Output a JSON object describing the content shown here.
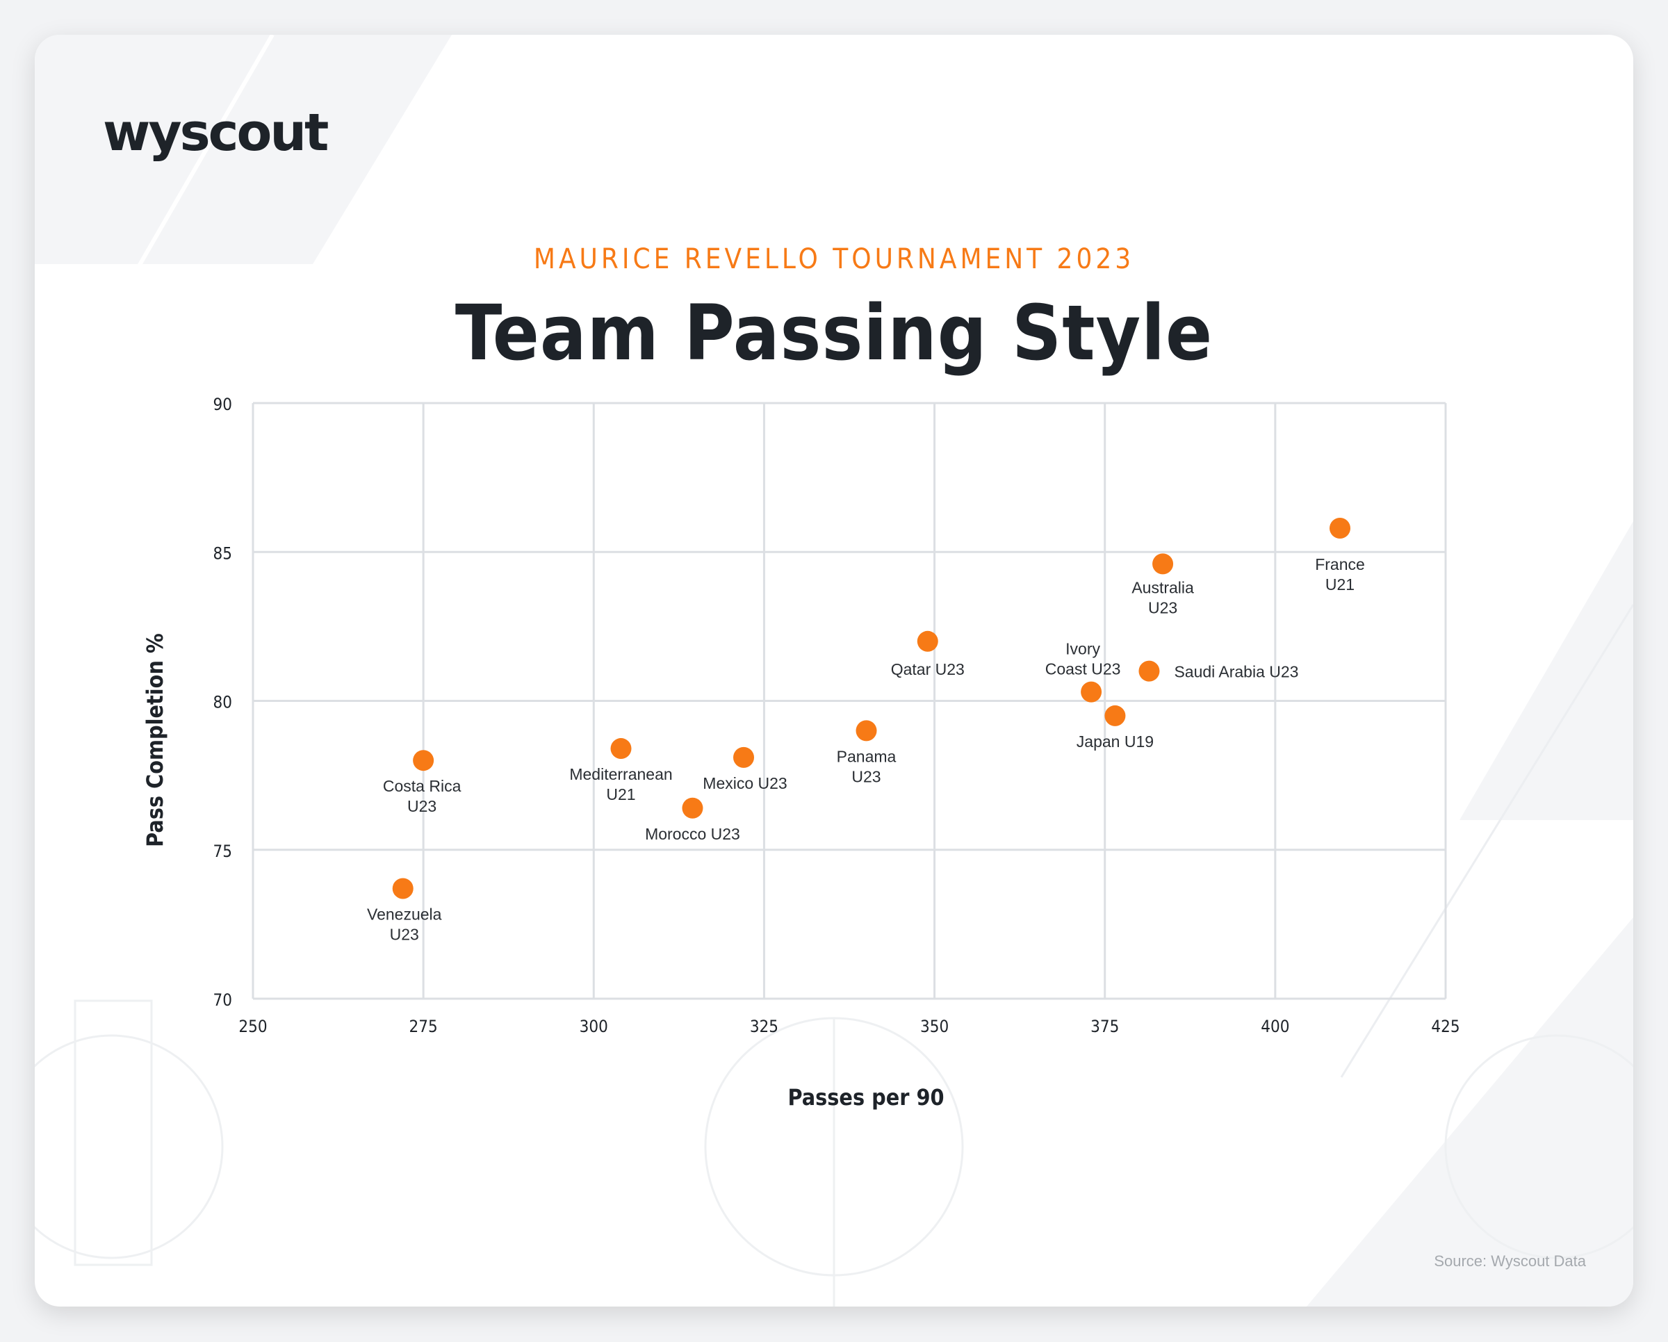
{
  "brand": {
    "logo_text": "wyscout"
  },
  "header": {
    "subtitle": "MAURICE REVELLO TOURNAMENT 2023",
    "title": "Team Passing Style"
  },
  "source": "Source: Wyscout Data",
  "colors": {
    "accent": "#f77a16",
    "text": "#1e2329",
    "grid": "#dcdfe3"
  },
  "chart_data": {
    "type": "scatter",
    "xlabel": "Passes per 90",
    "ylabel": "Pass Completion %",
    "xlim": [
      250,
      425
    ],
    "ylim": [
      70,
      90
    ],
    "xticks": [
      250,
      275,
      300,
      325,
      350,
      375,
      400,
      425
    ],
    "yticks": [
      70,
      75,
      80,
      85,
      90
    ],
    "grid": true,
    "points": [
      {
        "label": "France\nU21",
        "x": 409.5,
        "y": 85.8
      },
      {
        "label": "Australia\nU23",
        "x": 383.5,
        "y": 84.6
      },
      {
        "label": "Qatar U23",
        "x": 349,
        "y": 82.0
      },
      {
        "label": "Saudi Arabia U23",
        "x": 381.5,
        "y": 81.0
      },
      {
        "label": "Ivory\nCoast U23",
        "x": 373,
        "y": 80.3
      },
      {
        "label": "Japan U19",
        "x": 376.5,
        "y": 79.5
      },
      {
        "label": "Panama\nU23",
        "x": 340,
        "y": 79.0
      },
      {
        "label": "Mediterranean\nU21",
        "x": 304,
        "y": 78.4
      },
      {
        "label": "Mexico U23",
        "x": 322,
        "y": 78.1
      },
      {
        "label": "Costa Rica\nU23",
        "x": 275,
        "y": 78.0
      },
      {
        "label": "Morocco U23",
        "x": 314.5,
        "y": 76.4
      },
      {
        "label": "Venezuela\nU23",
        "x": 272,
        "y": 73.7
      }
    ]
  }
}
